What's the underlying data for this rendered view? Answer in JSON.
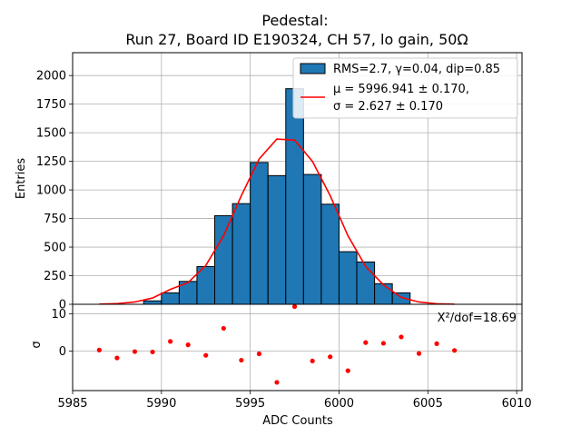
{
  "chart_data": {
    "type": "histogram",
    "title_line1": "Pedestal:",
    "title_line2": "Run 27, Board ID E190324, CH 57, lo gain, 50Ω",
    "xlabel": "ADC Counts",
    "ylabel_top": "Entries",
    "ylabel_bottom": "σ",
    "xlim": [
      5985,
      6010.3
    ],
    "ylim_top": [
      0,
      2200
    ],
    "ylim_bottom": [
      -10.5,
      12.5
    ],
    "xticks": [
      5985,
      5990,
      5995,
      6000,
      6005,
      6010
    ],
    "yticks_top": [
      0,
      250,
      500,
      750,
      1000,
      1250,
      1500,
      1750,
      2000
    ],
    "yticks_bottom": [
      0,
      10
    ],
    "bin_width": 1,
    "bins": [
      {
        "x0": 5989,
        "count": 30
      },
      {
        "x0": 5990,
        "count": 100
      },
      {
        "x0": 5991,
        "count": 200
      },
      {
        "x0": 5992,
        "count": 330
      },
      {
        "x0": 5993,
        "count": 775
      },
      {
        "x0": 5994,
        "count": 880
      },
      {
        "x0": 5995,
        "count": 1240
      },
      {
        "x0": 5996,
        "count": 1125
      },
      {
        "x0": 5997,
        "count": 1885
      },
      {
        "x0": 5998,
        "count": 1135
      },
      {
        "x0": 5999,
        "count": 875
      },
      {
        "x0": 6000,
        "count": 460
      },
      {
        "x0": 6001,
        "count": 370
      },
      {
        "x0": 6002,
        "count": 180
      },
      {
        "x0": 6003,
        "count": 100
      }
    ],
    "fit_curve": {
      "x": [
        5986.5,
        5987.5,
        5988.5,
        5989.5,
        5990.5,
        5991.5,
        5992.5,
        5993.5,
        5994.5,
        5995.5,
        5996.5,
        5997.5,
        5998.5,
        5999.5,
        6000.5,
        6001.5,
        6002.5,
        6003.5,
        6004.5,
        6005.5,
        6006.5
      ],
      "y": [
        2,
        6,
        20,
        55,
        130,
        190,
        340,
        600,
        950,
        1270,
        1445,
        1435,
        1250,
        950,
        600,
        330,
        170,
        60,
        20,
        5,
        1
      ]
    },
    "residuals": {
      "x": [
        5986.5,
        5987.5,
        5988.5,
        5989.5,
        5990.5,
        5991.5,
        5992.5,
        5993.5,
        5994.5,
        5995.5,
        5996.5,
        5997.5,
        5998.5,
        5999.5,
        6000.5,
        6001.5,
        6002.5,
        6003.5,
        6004.5,
        6005.5,
        6006.5
      ],
      "y": [
        0.3,
        -1.8,
        -0.1,
        -0.2,
        2.6,
        1.7,
        -1.1,
        6.1,
        -2.4,
        -0.7,
        -8.3,
        11.9,
        -2.6,
        -1.5,
        -5.2,
        2.3,
        2.1,
        3.8,
        -0.6,
        2.0,
        0.2
      ]
    },
    "legend": {
      "hist_label": "RMS=2.7, γ=0.04, dip=0.85",
      "fit_line1": "μ = 5996.941 ± 0.170,",
      "fit_line2": "σ = 2.627 ± 0.170"
    },
    "chi2_label": "X²/dof=18.69",
    "colors": {
      "bar_fill": "#1f77b4",
      "bar_edge": "#000000",
      "fit_line": "#ff0000",
      "residual_marker": "#ff0000",
      "grid": "#b0b0b0"
    }
  }
}
